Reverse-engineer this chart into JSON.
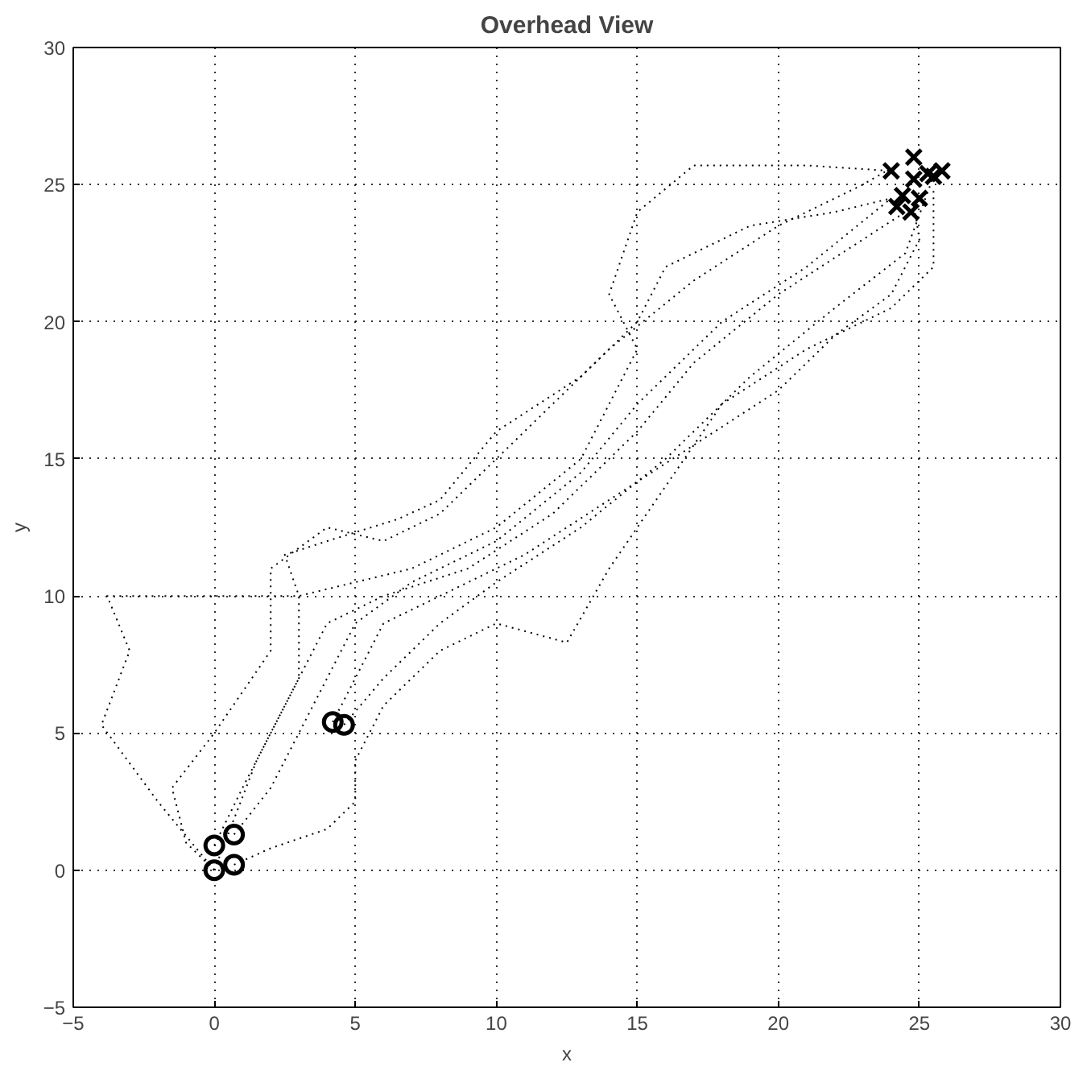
{
  "chart_data": {
    "type": "line",
    "title": "Overhead View",
    "xlabel": "x",
    "ylabel": "y",
    "xlim": [
      -5,
      30
    ],
    "ylim": [
      -5,
      30
    ],
    "xticks": [
      -5,
      0,
      5,
      10,
      15,
      20,
      25,
      30
    ],
    "yticks": [
      -5,
      0,
      5,
      10,
      15,
      20,
      25,
      30
    ],
    "grid": true,
    "line_style": "dotted",
    "marker": "none",
    "series": [
      {
        "color": "#000000",
        "x": [
          0,
          -2,
          -4,
          -3,
          -3.8,
          0,
          3,
          7,
          10,
          13,
          15,
          14,
          15,
          17,
          21,
          24
        ],
        "values": [
          0,
          2.5,
          5.3,
          8,
          10,
          10,
          10,
          11,
          12.5,
          15,
          19,
          21,
          24,
          25.7,
          25.7,
          25.5
        ]
      },
      {
        "color": "#000000",
        "x": [
          0,
          -1,
          -1.5,
          0,
          2,
          2,
          4,
          6,
          8,
          11,
          14,
          17,
          20,
          23,
          24
        ],
        "values": [
          0,
          1,
          3,
          5,
          8,
          11,
          12.5,
          12,
          13,
          16,
          19,
          21.5,
          23.5,
          25,
          25.6
        ]
      },
      {
        "color": "#000000",
        "x": [
          0.7,
          2,
          3,
          4,
          5,
          7,
          10,
          13,
          15,
          18,
          21,
          24
        ],
        "values": [
          1.3,
          3,
          5,
          7,
          9,
          10.5,
          12,
          14.5,
          17,
          20,
          22,
          24.5
        ]
      },
      {
        "color": "#000000",
        "x": [
          0,
          1,
          2.5,
          4,
          6,
          9,
          12,
          15,
          17,
          20,
          23,
          24.5
        ],
        "values": [
          0.9,
          3,
          6,
          9,
          10,
          11,
          13,
          16,
          18.5,
          21,
          23,
          24
        ]
      },
      {
        "color": "#000000",
        "x": [
          4.2,
          5,
          6,
          8,
          11,
          14,
          17,
          20,
          22,
          24,
          25,
          24.8
        ],
        "values": [
          5.4,
          7,
          9,
          10,
          11.5,
          13.5,
          15.5,
          17.5,
          19.5,
          21,
          23,
          24.3
        ]
      },
      {
        "color": "#000000",
        "x": [
          0.7,
          2,
          4,
          5,
          5,
          6,
          8,
          10,
          12.5,
          14,
          16,
          18,
          21,
          24,
          25.5,
          25.5
        ],
        "values": [
          0.2,
          0.8,
          1.5,
          2.5,
          4,
          6,
          8,
          9,
          8.3,
          11,
          14,
          17,
          19,
          20.5,
          22,
          24.8
        ]
      },
      {
        "color": "#000000",
        "x": [
          4.6,
          6,
          8,
          10,
          13,
          16,
          19,
          22,
          24.5,
          25.5
        ],
        "values": [
          5.3,
          7,
          9,
          10.5,
          12.5,
          15,
          18,
          20.5,
          22.5,
          25.3
        ]
      },
      {
        "color": "#000000",
        "x": [
          0,
          1.5,
          3,
          3,
          2.5,
          4,
          6.5,
          8,
          10,
          13,
          15,
          16,
          19,
          22,
          24
        ],
        "values": [
          0,
          4,
          7,
          10,
          11.5,
          12,
          12.8,
          13.5,
          16,
          18,
          20,
          22,
          23.5,
          24,
          24.5
        ]
      },
      {
        "type": "scatter",
        "marker": "circle",
        "color": "#000000",
        "x": [
          0,
          0,
          0.7,
          0.7,
          4.2,
          4.6
        ],
        "values": [
          0,
          0.9,
          1.3,
          0.2,
          5.4,
          5.3
        ]
      },
      {
        "type": "scatter",
        "marker": "cross",
        "color": "#000000",
        "x": [
          24,
          24.8,
          24.4,
          24.2,
          24.7,
          25,
          25.5,
          25.8,
          25.3,
          24.8
        ],
        "values": [
          25.5,
          26,
          24.6,
          24.2,
          24,
          24.5,
          25.3,
          25.5,
          25.4,
          25.2
        ]
      }
    ]
  }
}
